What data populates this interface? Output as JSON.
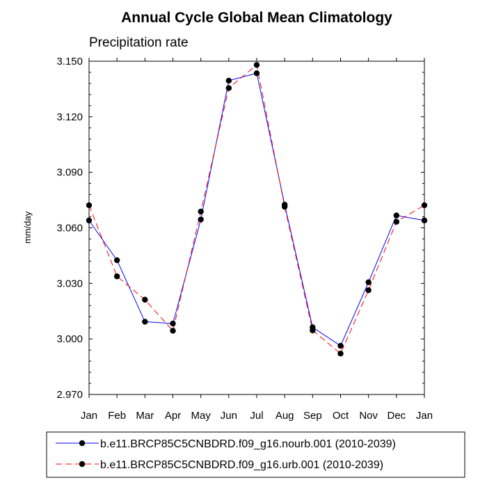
{
  "chart_data": {
    "type": "line",
    "title": "Annual Cycle Global Mean Climatology",
    "subtitle": "Precipitation rate",
    "xlabel": "",
    "ylabel": "mm/day",
    "ylim": [
      2.97,
      3.15
    ],
    "yticks": [
      "3.150",
      "3.120",
      "3.090",
      "3.060",
      "3.030",
      "3.000",
      "2.970"
    ],
    "ytick_values": [
      3.15,
      3.12,
      3.09,
      3.06,
      3.03,
      3.0,
      2.97
    ],
    "categories": [
      "Jan",
      "Feb",
      "Mar",
      "Apr",
      "May",
      "Jun",
      "Jul",
      "Aug",
      "Sep",
      "Oct",
      "Nov",
      "Dec",
      "Jan"
    ],
    "series": [
      {
        "name": "b.e11.BRCP85C5CNBDRD.f09_g16.nourb.001 (2010-2039)",
        "color": "#0000ff",
        "dash": "solid",
        "values": [
          3.064,
          3.0425,
          3.0093,
          3.0083,
          3.0645,
          3.1395,
          3.1435,
          3.0725,
          3.0063,
          2.9963,
          3.0306,
          3.0667,
          3.064
        ]
      },
      {
        "name": "b.e11.BRCP85C5CNBDRD.f09_g16.urb.001 (2010-2039)",
        "color": "#ff0000",
        "dash": "dashed",
        "values": [
          3.0722,
          3.0338,
          3.0212,
          3.0044,
          3.0688,
          3.1355,
          3.148,
          3.0714,
          3.0046,
          2.9921,
          3.0263,
          3.0633,
          3.0722
        ]
      }
    ],
    "legend_position": "bottom"
  }
}
